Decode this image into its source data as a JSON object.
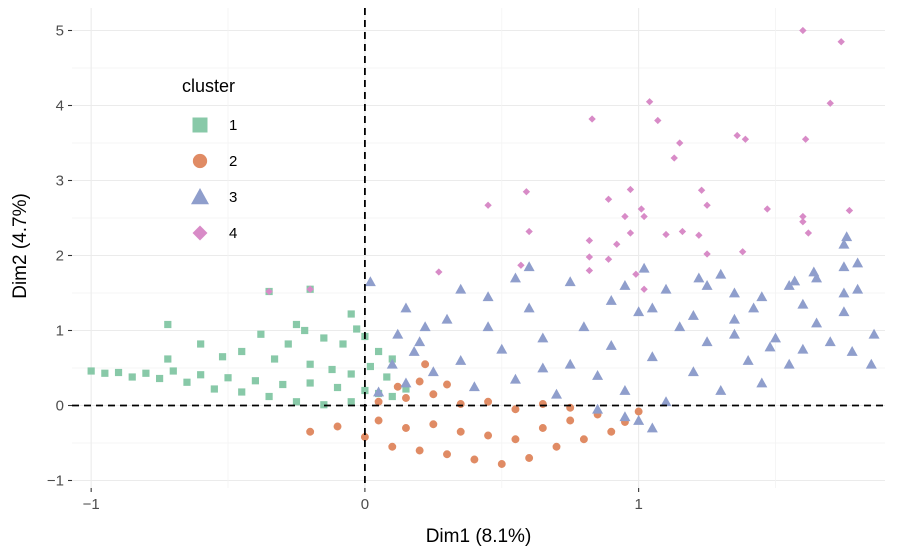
{
  "chart_data": {
    "type": "scatter",
    "title": "",
    "xlabel": "Dim1 (8.1%)",
    "ylabel": "Dim2 (4.7%)",
    "xlim": [
      -1.07,
      1.9
    ],
    "ylim": [
      -1.1,
      5.3
    ],
    "xticks": [
      -1,
      0,
      1
    ],
    "xtick_labels": [
      "−1",
      "0",
      "1"
    ],
    "yticks": [
      -1,
      0,
      1,
      2,
      3,
      4,
      5
    ],
    "ytick_labels": [
      "−1",
      "0",
      "1",
      "2",
      "3",
      "4",
      "5"
    ],
    "grid": true,
    "reference_lines": {
      "x": 0,
      "y": 0,
      "style": "dashed"
    },
    "legend": {
      "title": "cluster",
      "position": "top-left"
    },
    "series": [
      {
        "name": "1",
        "shape": "square",
        "color": "#88C9A8",
        "points": [
          [
            -1.0,
            0.46
          ],
          [
            -0.95,
            0.43
          ],
          [
            -0.9,
            0.44
          ],
          [
            -0.85,
            0.38
          ],
          [
            -0.8,
            0.43
          ],
          [
            -0.75,
            0.36
          ],
          [
            -0.7,
            0.46
          ],
          [
            -0.65,
            0.31
          ],
          [
            -0.6,
            0.41
          ],
          [
            -0.55,
            0.22
          ],
          [
            -0.5,
            0.37
          ],
          [
            -0.45,
            0.18
          ],
          [
            -0.4,
            0.33
          ],
          [
            -0.35,
            0.12
          ],
          [
            -0.3,
            0.28
          ],
          [
            -0.25,
            0.05
          ],
          [
            -0.2,
            0.3
          ],
          [
            -0.15,
            0.01
          ],
          [
            -0.1,
            0.24
          ],
          [
            -0.05,
            0.05
          ],
          [
            0.0,
            0.2
          ],
          [
            0.05,
            0.16
          ],
          [
            0.1,
            0.12
          ],
          [
            0.15,
            0.22
          ],
          [
            -0.72,
            0.62
          ],
          [
            -0.6,
            0.82
          ],
          [
            -0.52,
            0.65
          ],
          [
            -0.45,
            0.72
          ],
          [
            -0.38,
            0.95
          ],
          [
            -0.33,
            0.62
          ],
          [
            -0.28,
            0.82
          ],
          [
            -0.22,
            1.0
          ],
          [
            -0.2,
            0.55
          ],
          [
            -0.15,
            0.9
          ],
          [
            -0.12,
            0.48
          ],
          [
            -0.08,
            0.82
          ],
          [
            -0.05,
            0.42
          ],
          [
            -0.03,
            1.02
          ],
          [
            0.0,
            0.92
          ],
          [
            0.02,
            0.52
          ],
          [
            0.05,
            0.72
          ],
          [
            0.08,
            0.38
          ],
          [
            0.1,
            0.62
          ],
          [
            -0.35,
            1.52
          ],
          [
            -0.2,
            1.55
          ],
          [
            -0.72,
            1.08
          ],
          [
            -0.25,
            1.08
          ],
          [
            -0.05,
            1.22
          ]
        ]
      },
      {
        "name": "2",
        "shape": "circle",
        "color": "#E08B64",
        "points": [
          [
            -0.2,
            -0.35
          ],
          [
            -0.1,
            -0.28
          ],
          [
            0.0,
            -0.42
          ],
          [
            0.05,
            -0.2
          ],
          [
            0.1,
            -0.55
          ],
          [
            0.15,
            -0.3
          ],
          [
            0.2,
            -0.6
          ],
          [
            0.25,
            -0.25
          ],
          [
            0.3,
            -0.65
          ],
          [
            0.35,
            -0.35
          ],
          [
            0.4,
            -0.72
          ],
          [
            0.45,
            -0.4
          ],
          [
            0.5,
            -0.78
          ],
          [
            0.55,
            -0.45
          ],
          [
            0.6,
            -0.7
          ],
          [
            0.65,
            -0.3
          ],
          [
            0.7,
            -0.55
          ],
          [
            0.75,
            -0.2
          ],
          [
            0.8,
            -0.45
          ],
          [
            0.85,
            -0.12
          ],
          [
            0.9,
            -0.35
          ],
          [
            0.95,
            -0.22
          ],
          [
            1.0,
            -0.08
          ],
          [
            0.05,
            0.05
          ],
          [
            0.15,
            0.1
          ],
          [
            0.25,
            0.15
          ],
          [
            0.35,
            0.02
          ],
          [
            0.45,
            0.05
          ],
          [
            0.55,
            -0.05
          ],
          [
            0.65,
            0.02
          ],
          [
            0.75,
            -0.03
          ],
          [
            0.2,
            0.32
          ],
          [
            0.22,
            0.55
          ],
          [
            0.12,
            0.25
          ],
          [
            0.3,
            0.28
          ]
        ]
      },
      {
        "name": "3",
        "shape": "triangle",
        "color": "#8F9ECC",
        "points": [
          [
            0.05,
            0.18
          ],
          [
            0.1,
            0.55
          ],
          [
            0.15,
            0.3
          ],
          [
            0.2,
            0.85
          ],
          [
            0.25,
            0.45
          ],
          [
            0.3,
            1.15
          ],
          [
            0.35,
            0.6
          ],
          [
            0.4,
            0.25
          ],
          [
            0.45,
            1.05
          ],
          [
            0.5,
            0.75
          ],
          [
            0.55,
            0.35
          ],
          [
            0.6,
            1.3
          ],
          [
            0.65,
            0.9
          ],
          [
            0.7,
            0.15
          ],
          [
            0.75,
            0.55
          ],
          [
            0.8,
            1.05
          ],
          [
            0.85,
            0.4
          ],
          [
            0.9,
            0.8
          ],
          [
            0.95,
            0.2
          ],
          [
            1.0,
            1.25
          ],
          [
            1.05,
            0.65
          ],
          [
            1.1,
            0.05
          ],
          [
            1.15,
            1.05
          ],
          [
            1.2,
            0.45
          ],
          [
            1.25,
            0.85
          ],
          [
            1.3,
            0.2
          ],
          [
            1.35,
            1.15
          ],
          [
            1.4,
            0.6
          ],
          [
            1.45,
            0.3
          ],
          [
            1.5,
            0.9
          ],
          [
            1.55,
            0.55
          ],
          [
            1.6,
            0.75
          ],
          [
            1.65,
            1.1
          ],
          [
            1.7,
            0.85
          ],
          [
            1.75,
            1.25
          ],
          [
            1.8,
            1.55
          ],
          [
            1.85,
            0.55
          ],
          [
            0.95,
            -0.15
          ],
          [
            1.0,
            -0.2
          ],
          [
            1.05,
            -0.3
          ],
          [
            0.85,
            -0.05
          ],
          [
            0.65,
            0.5
          ],
          [
            0.35,
            1.55
          ],
          [
            0.55,
            1.7
          ],
          [
            0.75,
            1.65
          ],
          [
            0.95,
            1.6
          ],
          [
            1.1,
            1.55
          ],
          [
            1.25,
            1.6
          ],
          [
            1.35,
            1.5
          ],
          [
            1.45,
            1.45
          ],
          [
            1.55,
            1.6
          ],
          [
            1.65,
            1.7
          ],
          [
            1.75,
            1.5
          ],
          [
            1.8,
            1.9
          ],
          [
            1.75,
            1.85
          ],
          [
            1.3,
            1.75
          ],
          [
            1.02,
            1.83
          ],
          [
            0.6,
            1.85
          ],
          [
            0.02,
            1.65
          ],
          [
            1.22,
            1.7
          ],
          [
            1.64,
            1.78
          ],
          [
            1.57,
            1.66
          ],
          [
            1.48,
            0.78
          ],
          [
            1.86,
            0.95
          ],
          [
            1.78,
            0.72
          ],
          [
            1.6,
            1.35
          ],
          [
            1.35,
            0.95
          ],
          [
            0.9,
            1.4
          ],
          [
            0.15,
            1.3
          ],
          [
            0.12,
            0.95
          ],
          [
            0.18,
            0.72
          ],
          [
            0.45,
            1.45
          ],
          [
            1.05,
            1.3
          ],
          [
            1.2,
            1.2
          ],
          [
            1.42,
            1.3
          ],
          [
            1.75,
            2.15
          ],
          [
            1.76,
            2.25
          ],
          [
            0.22,
            1.05
          ]
        ]
      },
      {
        "name": "4",
        "shape": "diamond",
        "color": "#D88BC7",
        "points": [
          [
            1.6,
            5.0
          ],
          [
            1.74,
            4.85
          ],
          [
            1.04,
            4.05
          ],
          [
            1.7,
            4.03
          ],
          [
            0.83,
            3.82
          ],
          [
            1.07,
            3.8
          ],
          [
            1.36,
            3.6
          ],
          [
            1.39,
            3.55
          ],
          [
            1.61,
            3.55
          ],
          [
            1.15,
            3.5
          ],
          [
            1.13,
            3.3
          ],
          [
            0.59,
            2.85
          ],
          [
            0.97,
            2.88
          ],
          [
            1.23,
            2.87
          ],
          [
            0.89,
            2.75
          ],
          [
            0.45,
            2.67
          ],
          [
            1.25,
            2.67
          ],
          [
            1.01,
            2.62
          ],
          [
            1.47,
            2.62
          ],
          [
            0.95,
            2.52
          ],
          [
            1.6,
            2.52
          ],
          [
            0.6,
            2.32
          ],
          [
            1.16,
            2.32
          ],
          [
            0.97,
            2.3
          ],
          [
            1.1,
            2.28
          ],
          [
            1.22,
            2.27
          ],
          [
            1.62,
            2.3
          ],
          [
            1.6,
            2.45
          ],
          [
            1.77,
            2.6
          ],
          [
            0.82,
            2.2
          ],
          [
            0.92,
            2.15
          ],
          [
            1.38,
            2.05
          ],
          [
            1.25,
            2.02
          ],
          [
            0.82,
            1.98
          ],
          [
            0.57,
            1.87
          ],
          [
            0.27,
            1.78
          ],
          [
            0.99,
            1.75
          ],
          [
            0.82,
            1.8
          ],
          [
            0.89,
            1.95
          ],
          [
            1.02,
            1.55
          ],
          [
            -0.35,
            1.52
          ],
          [
            -0.2,
            1.55
          ],
          [
            1.02,
            2.52
          ]
        ]
      }
    ]
  }
}
